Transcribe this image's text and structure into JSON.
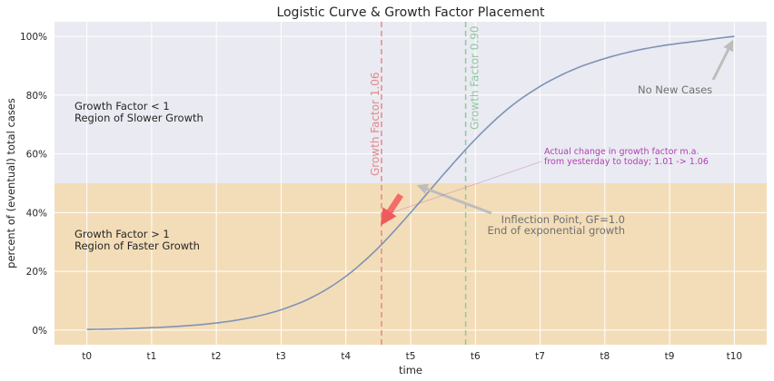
{
  "chart_data": {
    "type": "line",
    "title": "Logistic Curve & Growth Factor Placement",
    "xlabel": "time",
    "ylabel": "percent of (eventual) total cases",
    "x_ticks": [
      "t0",
      "t1",
      "t2",
      "t3",
      "t4",
      "t5",
      "t6",
      "t7",
      "t8",
      "t9",
      "t10"
    ],
    "xlim": [
      -0.5,
      10.5
    ],
    "ylim": [
      -5,
      105
    ],
    "y_ticks": [
      0,
      20,
      40,
      60,
      80,
      100
    ],
    "y_tick_labels": [
      "0%",
      "20%",
      "40%",
      "60%",
      "80%",
      "100%"
    ],
    "grid": true,
    "series": [
      {
        "x": [
          0,
          0.5,
          1,
          1.5,
          2,
          2.5,
          3,
          3.5,
          4,
          4.5,
          5,
          5.5,
          6,
          6.5,
          7,
          7.5,
          8,
          8.5,
          9,
          9.5,
          10
        ],
        "y": [
          0.2,
          0.4,
          0.8,
          1.4,
          2.4,
          4.1,
          6.9,
          11.4,
          18.3,
          28.0,
          40.0,
          52.8,
          65.0,
          75.3,
          83.0,
          88.6,
          92.5,
          95.3,
          97.2,
          98.6,
          100.0
        ],
        "color": "#7f93b6"
      }
    ],
    "regions": [
      {
        "y_from": -5,
        "y_to": 50,
        "color": "#f3ddb8"
      }
    ],
    "vlines": [
      {
        "x": 4.55,
        "label": "Growth Factor 1.06",
        "color": "#e08a8a"
      },
      {
        "x": 5.85,
        "label": "Growth Factor 0.90",
        "color": "#8fc99a"
      }
    ],
    "annotations": {
      "slower_growth": [
        "Growth Factor < 1",
        "Region of Slower Growth"
      ],
      "faster_growth": [
        "Growth Factor > 1",
        "Region of Faster Growth"
      ],
      "no_new_cases": "No New Cases",
      "inflection": [
        "Inflection Point, GF=1.0",
        "End of exponential growth"
      ],
      "actual_change": [
        "Actual change in growth factor m.a.",
        "from yesterday to today; 1.01 -> 1.06"
      ]
    },
    "colors": {
      "plot_bg": "#eaeaf2",
      "grid": "#ffffff",
      "arrow_gray": "#bdbdbd",
      "arrow_red": "#f05a5a",
      "purple": "#b040b0"
    }
  }
}
